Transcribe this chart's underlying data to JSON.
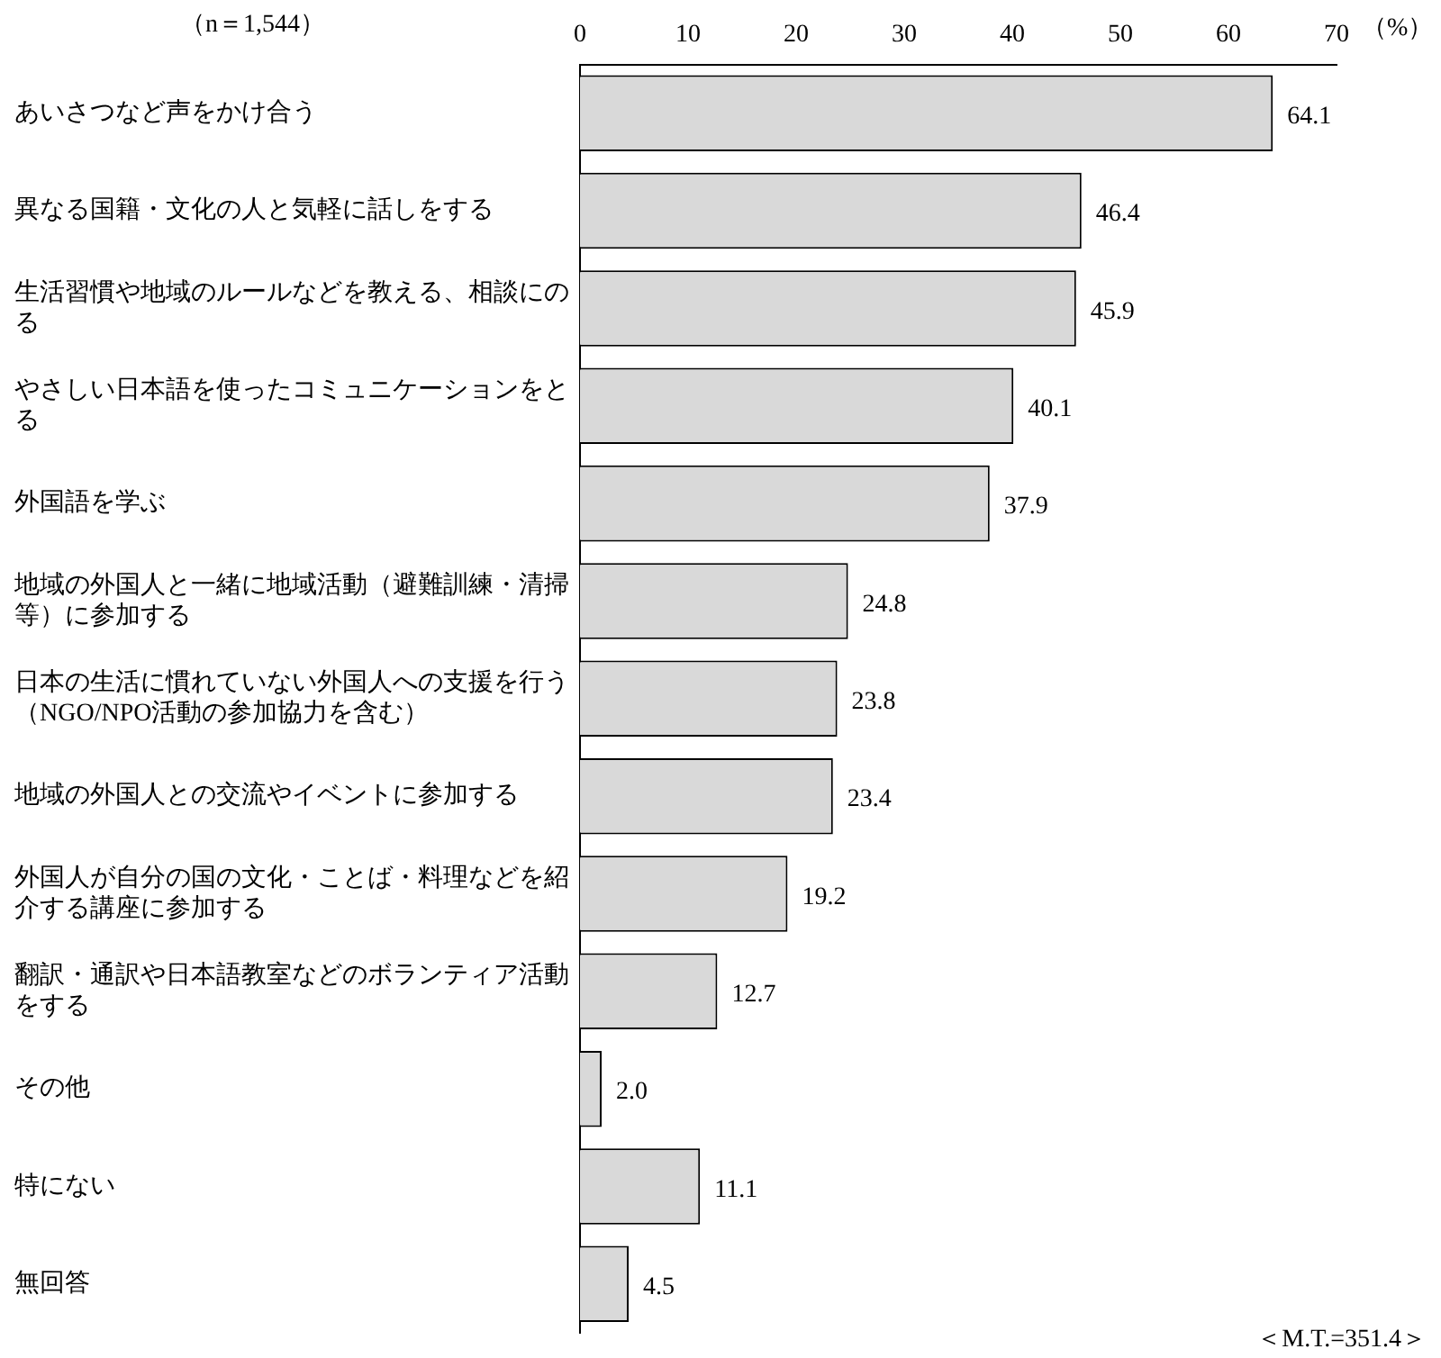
{
  "chart_data": {
    "type": "bar",
    "orientation": "horizontal",
    "xlabel": "（%）",
    "categories": [
      "あいさつなど声をかけ合う",
      "異なる国籍・文化の人と気軽に話しをする",
      "生活習慣や地域のルールなどを教える、相談にのる",
      "やさしい日本語を使ったコミュニケーションをとる",
      "外国語を学ぶ",
      "地域の外国人と一緒に地域活動（避難訓練・清掃等）に参加する",
      "日本の生活に慣れていない外国人への支援を行う（NGO/NPO活動の参加協力を含む）",
      "地域の外国人との交流やイベントに参加する",
      "外国人が自分の国の文化・ことば・料理などを紹介する講座に参加する",
      "翻訳・通訳や日本語教室などのボランティア活動をする",
      "その他",
      "特にない",
      "無回答"
    ],
    "values": [
      64.1,
      46.4,
      45.9,
      40.1,
      37.9,
      24.8,
      23.8,
      23.4,
      19.2,
      12.7,
      2.0,
      11.1,
      4.5
    ],
    "value_labels": [
      "64.1",
      "46.4",
      "45.9",
      "40.1",
      "37.9",
      "24.8",
      "23.8",
      "23.4",
      "19.2",
      "12.7",
      "2.0",
      "11.1",
      "4.5"
    ],
    "color": "#d9d9d9",
    "xlim": [
      0,
      70
    ],
    "xticks": [
      0,
      10,
      20,
      30,
      40,
      50,
      60,
      70
    ],
    "grid": false,
    "legend": false,
    "annotations": [
      "（n＝1,544）",
      "＜M.T.=351.4＞"
    ]
  }
}
